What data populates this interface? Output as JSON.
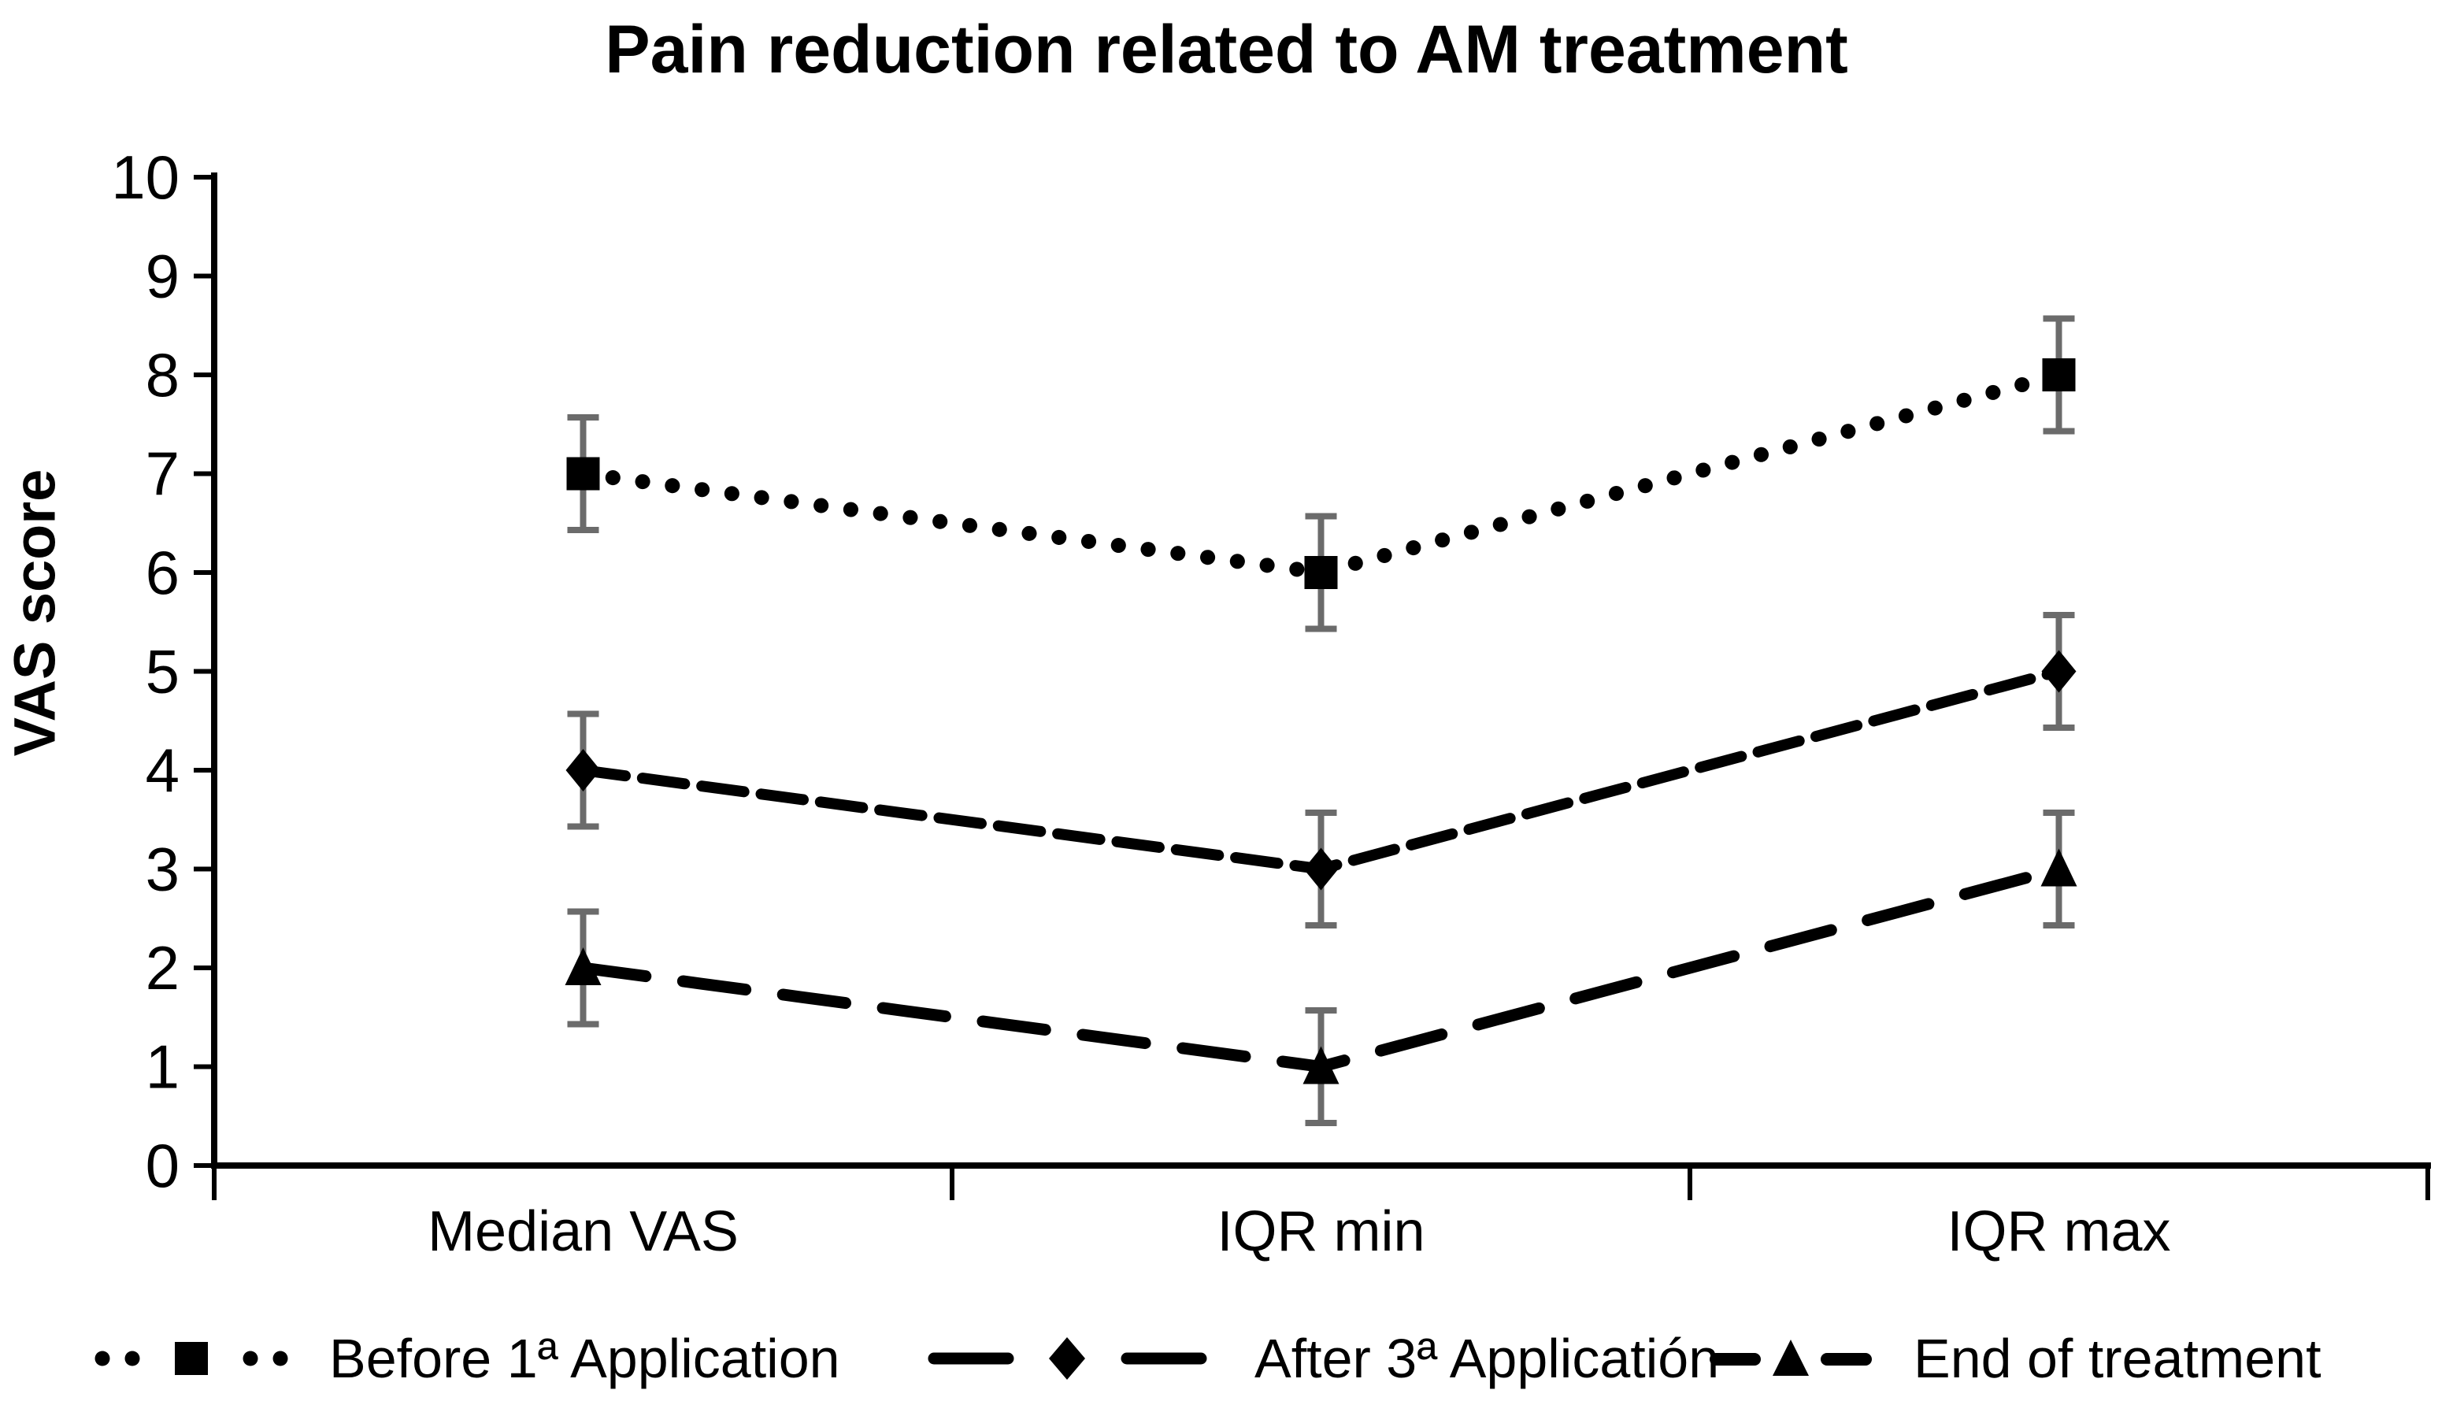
{
  "chart_data": {
    "type": "line",
    "title": "Pain reduction related to AM treatment",
    "xlabel": "",
    "ylabel": "VAS score",
    "categories": [
      "Median VAS",
      "IQR min",
      "IQR max"
    ],
    "ylim": [
      0,
      10
    ],
    "ytick_labels": [
      "0",
      "1",
      "2",
      "3",
      "4",
      "5",
      "6",
      "7",
      "8",
      "9",
      "10"
    ],
    "grid": false,
    "legend_position": "bottom",
    "axis_color": "#000000",
    "error_bar_color": "#6b6b6b",
    "series": [
      {
        "name": "Before 1ª Application",
        "values": [
          7,
          6,
          8
        ],
        "errors": [
          0.57,
          0.57,
          0.57
        ],
        "marker": "square",
        "line_style": "dotted",
        "color": "#000000"
      },
      {
        "name": "After 3ª Applicatión",
        "values": [
          4,
          3,
          5
        ],
        "errors": [
          0.57,
          0.57,
          0.57
        ],
        "marker": "diamond",
        "line_style": "dashed",
        "color": "#000000"
      },
      {
        "name": "End of treatment",
        "values": [
          2,
          1,
          3
        ],
        "errors": [
          0.57,
          0.57,
          0.57
        ],
        "marker": "triangle-up",
        "line_style": "long-dash",
        "color": "#000000"
      }
    ]
  }
}
